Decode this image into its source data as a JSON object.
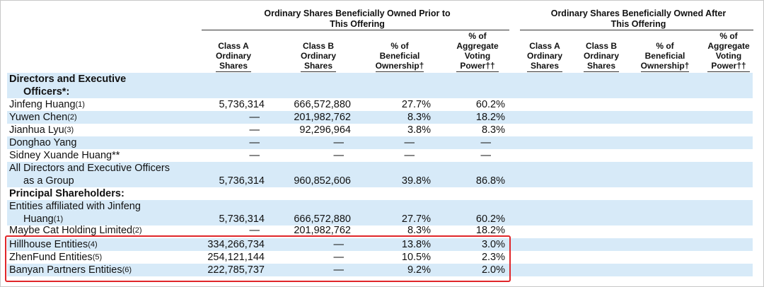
{
  "header": {
    "group_prior": "Ordinary Shares Beneficially Owned Prior to This Offering",
    "group_prior_line1": "Ordinary Shares Beneficially Owned Prior to",
    "group_prior_line2": "This Offering",
    "group_after_line1": "Ordinary Shares Beneficially Owned After",
    "group_after_line2": "This Offering",
    "columns": [
      {
        "l1": "Class A",
        "l2": "Ordinary",
        "l3": "Shares"
      },
      {
        "l1": "Class B",
        "l2": "Ordinary",
        "l3": "Shares"
      },
      {
        "l1": "% of",
        "l2": "Beneficial",
        "l3": "Ownership†"
      },
      {
        "l1": "% of",
        "l2": "Aggregate",
        "l3": "Voting",
        "l4": "Power††"
      },
      {
        "l1": "Class A",
        "l2": "Ordinary",
        "l3": "Shares"
      },
      {
        "l1": "Class B",
        "l2": "Ordinary",
        "l3": "Shares"
      },
      {
        "l1": "% of",
        "l2": "Beneficial",
        "l3": "Ownership†"
      },
      {
        "l1": "% of",
        "l2": "Aggregate",
        "l3": "Voting",
        "l4": "Power††"
      }
    ]
  },
  "sections": {
    "directors_l1": "Directors and Executive",
    "directors_l2": "Officers*:",
    "principal": "Principal Shareholders:"
  },
  "rows": [
    {
      "name": "Jinfeng Huang",
      "fn": "(1)",
      "a": "5,736,314",
      "b": "666,572,880",
      "ben": "27.7%",
      "vote": "60.2%"
    },
    {
      "name": "Yuwen Chen",
      "fn": "(2)",
      "a": "—",
      "b": "201,982,762",
      "ben": "8.3%",
      "vote": "18.2%"
    },
    {
      "name": "Jianhua Lyu",
      "fn": "(3)",
      "a": "—",
      "b": "92,296,964",
      "ben": "3.8%",
      "vote": "8.3%"
    },
    {
      "name": "Donghao Yang",
      "fn": "",
      "a": "—",
      "b": "—",
      "ben": "—",
      "vote": "—"
    },
    {
      "name": "Sidney Xuande Huang**",
      "fn": "",
      "a": "—",
      "b": "—",
      "ben": "—",
      "vote": "—"
    },
    {
      "name_l1": "All Directors and Executive Officers",
      "name_l2": "as a Group",
      "a": "5,736,314",
      "b": "960,852,606",
      "ben": "39.8%",
      "vote": "86.8%"
    },
    {
      "name_l1": "Entities affiliated with Jinfeng",
      "name_l2": "Huang",
      "fn": "(1)",
      "a": "5,736,314",
      "b": "666,572,880",
      "ben": "27.7%",
      "vote": "60.2%"
    },
    {
      "name": "Maybe Cat Holding Limited",
      "fn": "(2)",
      "a": "—",
      "b": "201,982,762",
      "ben": "8.3%",
      "vote": "18.2%"
    },
    {
      "name": "Hillhouse Entities",
      "fn": "(4)",
      "a": "334,266,734",
      "b": "—",
      "ben": "13.8%",
      "vote": "3.0%"
    },
    {
      "name": "ZhenFund Entities",
      "fn": "(5)",
      "a": "254,121,144",
      "b": "—",
      "ben": "10.5%",
      "vote": "2.3%"
    },
    {
      "name": "Banyan Partners Entities",
      "fn": "(6)",
      "a": "222,785,737",
      "b": "—",
      "ben": "9.2%",
      "vote": "2.0%"
    }
  ],
  "highlight": {
    "color": "#e0262a",
    "label": "highlighted rows: Hillhouse, ZhenFund, Banyan"
  }
}
